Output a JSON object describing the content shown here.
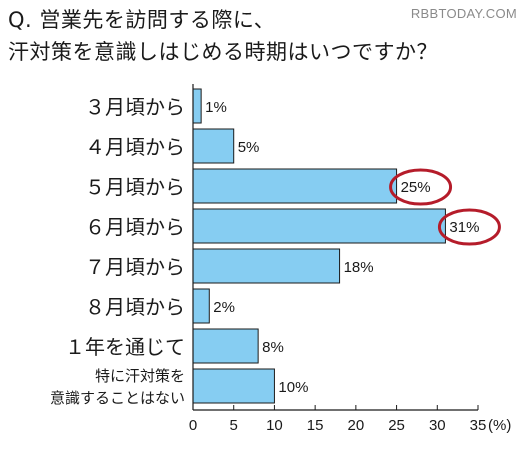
{
  "title": {
    "line1": "Q. 営業先を訪問する際に、",
    "line2": "汗対策を意識しはじめる時期はいつですか？"
  },
  "watermark": "RBBTODAY.COM",
  "colors": {
    "bar": "#86cdf2",
    "bar_stroke": "#1a1a1a",
    "highlight": "#b51c2a"
  },
  "chart_data": {
    "type": "bar",
    "orientation": "horizontal",
    "categories": [
      "３月頃から",
      "４月頃から",
      "５月頃から",
      "６月頃から",
      "７月頃から",
      "８月頃から",
      "１年を通じて",
      "特に汗対策を\n意識することはない"
    ],
    "values": [
      1,
      5,
      25,
      31,
      18,
      2,
      8,
      10
    ],
    "value_labels": [
      "1%",
      "5%",
      "25%",
      "31%",
      "18%",
      "2%",
      "8%",
      "10%"
    ],
    "highlighted": [
      "25%",
      "31%"
    ],
    "xlim": [
      0,
      35
    ],
    "xticks": [
      "0",
      "5",
      "10",
      "15",
      "20",
      "25",
      "30",
      "35"
    ],
    "x_unit": "(%)",
    "grid": false
  }
}
